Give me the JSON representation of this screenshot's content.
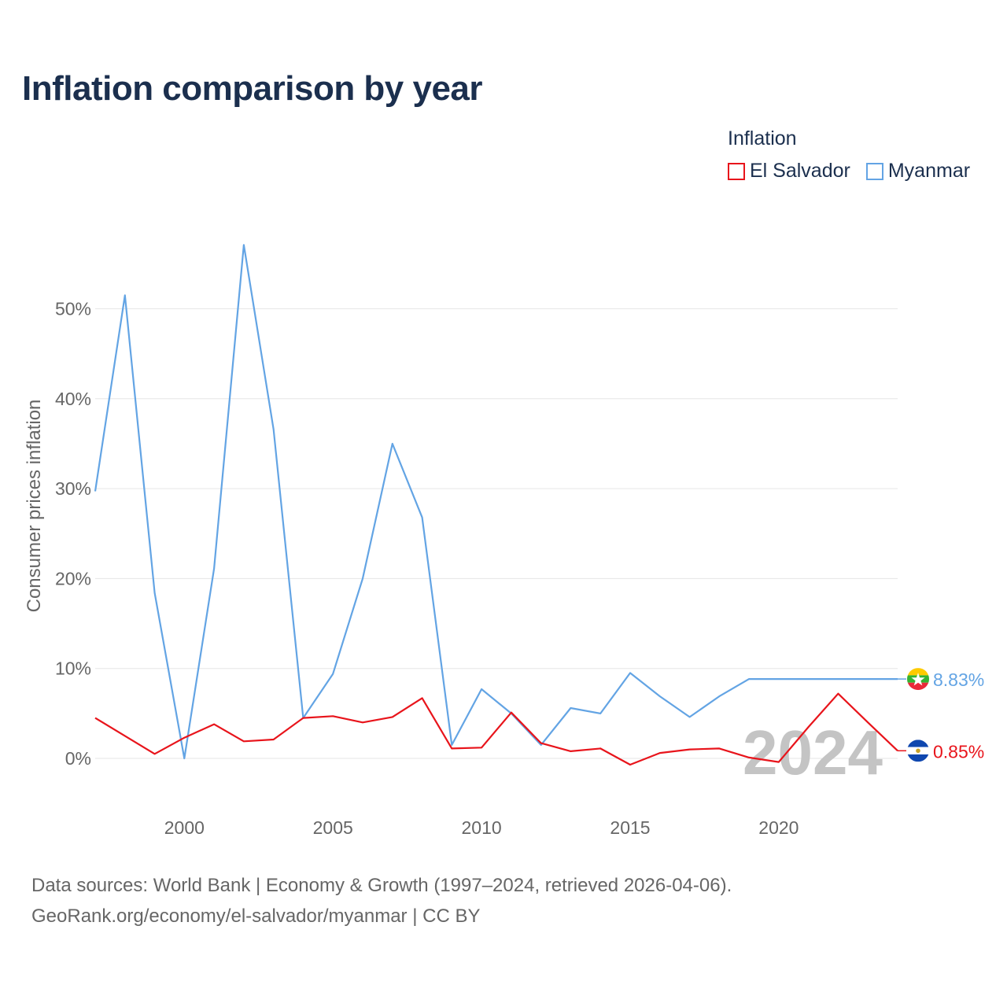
{
  "title": "Inflation comparison by year",
  "legend": {
    "title": "Inflation",
    "items": [
      {
        "label": "El Salvador",
        "color": "#e8141b"
      },
      {
        "label": "Myanmar",
        "color": "#63a4e4"
      }
    ]
  },
  "source": {
    "line1": "Data sources: World Bank | Economy & Growth (1997–2024, retrieved 2026-04-06).",
    "line2": "GeoRank.org/economy/el-salvador/myanmar | CC BY"
  },
  "chart_data": {
    "type": "line",
    "title": "Inflation comparison by year",
    "xlabel": "",
    "ylabel": "Consumer prices inflation",
    "x": [
      1997,
      1998,
      1999,
      2000,
      2001,
      2002,
      2003,
      2004,
      2005,
      2006,
      2007,
      2008,
      2009,
      2010,
      2011,
      2012,
      2013,
      2014,
      2015,
      2016,
      2017,
      2018,
      2019,
      2020,
      2021,
      2022,
      2023,
      2024
    ],
    "xlim": [
      1997,
      2024
    ],
    "ylim": [
      -4.5,
      57.5
    ],
    "x_ticks": [
      2000,
      2005,
      2010,
      2015,
      2020
    ],
    "x_tick_labels": [
      "2000",
      "2005",
      "2010",
      "2015",
      "2020"
    ],
    "y_ticks": [
      0,
      10,
      20,
      30,
      40,
      50
    ],
    "y_tick_labels": [
      "0%",
      "10%",
      "20%",
      "30%",
      "40%",
      "50%"
    ],
    "year_label": "2024",
    "series": [
      {
        "name": "Myanmar",
        "color": "#63a4e4",
        "flag": "myanmar-flag",
        "end_label": "8.83%",
        "values": [
          29.7,
          51.5,
          18.4,
          0.0,
          21.1,
          57.1,
          36.6,
          4.5,
          9.4,
          20.0,
          35.0,
          26.8,
          1.5,
          7.7,
          5.0,
          1.5,
          5.6,
          5.0,
          9.5,
          6.9,
          4.6,
          6.9,
          8.83,
          8.83,
          8.83,
          8.83,
          8.83,
          8.83
        ]
      },
      {
        "name": "El Salvador",
        "color": "#e8141b",
        "flag": "el-salvador-flag",
        "end_label": "0.85%",
        "values": [
          4.5,
          2.5,
          0.5,
          2.3,
          3.8,
          1.9,
          2.1,
          4.5,
          4.7,
          4.0,
          4.6,
          6.7,
          1.1,
          1.2,
          5.1,
          1.7,
          0.8,
          1.1,
          -0.7,
          0.6,
          1.0,
          1.1,
          0.1,
          -0.4,
          3.5,
          7.2,
          4.0,
          0.85
        ]
      }
    ]
  }
}
